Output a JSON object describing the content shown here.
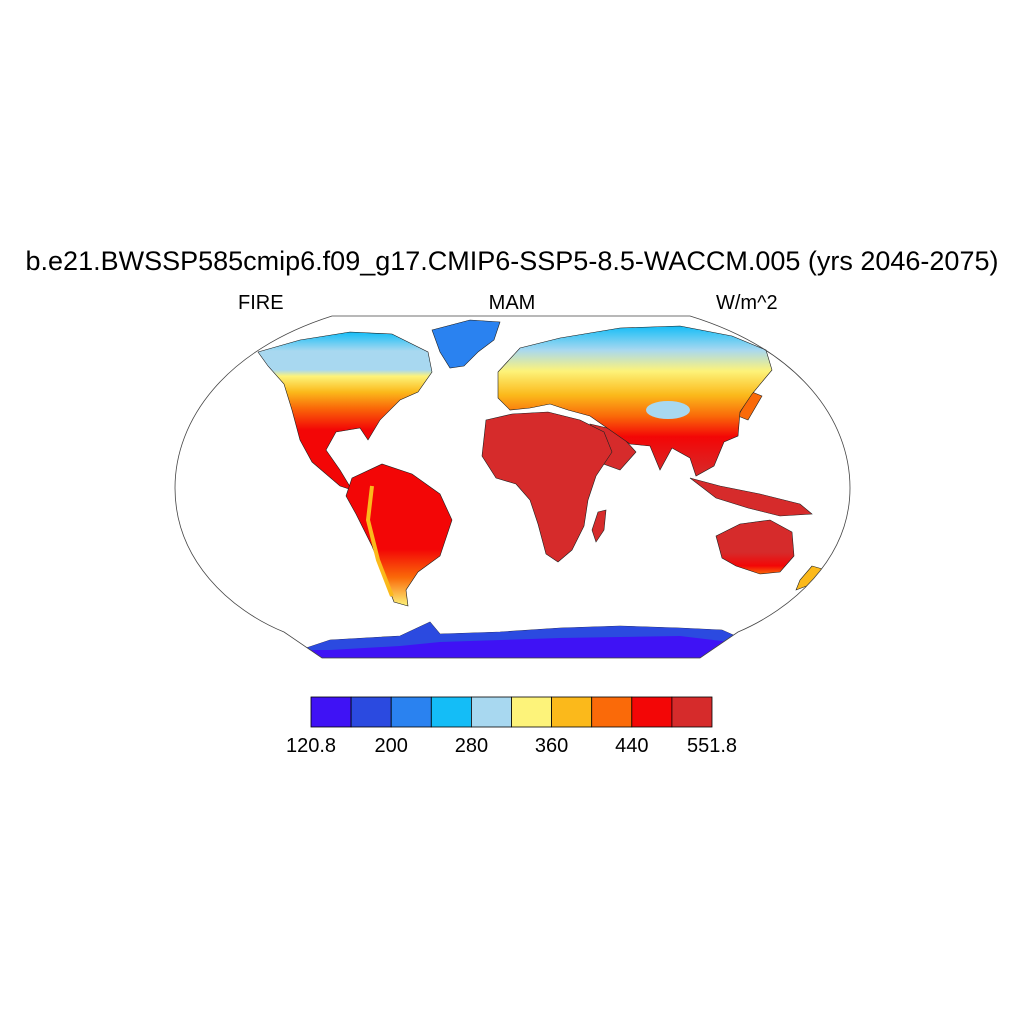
{
  "title": "b.e21.BWSSP585cmip6.f09_g17.CMIP6-SSP5-8.5-WACCM.005 (yrs 2046-2075)",
  "left_subtitle": "FIRE",
  "center_subtitle": "MAM",
  "right_subtitle": "W/m^2",
  "colorbar": {
    "colors": [
      "#3f12f5",
      "#2b4ae0",
      "#2a82f0",
      "#14bdf7",
      "#a8d8f0",
      "#fdf37a",
      "#fbb91b",
      "#fa6a09",
      "#f30606",
      "#d62b2b"
    ],
    "tick_labels": [
      "120.8",
      "200",
      "280",
      "360",
      "440",
      "551.8"
    ]
  },
  "map": {
    "projection": "Robinson",
    "ocean_color": "#ffffff",
    "regions": {
      "antarctica": "#3f12f5",
      "antarctica_coast": "#2b4ae0",
      "greenland": "#2a82f0",
      "arctic_fringe": "#14bdf7",
      "boreal": "#a8d8f0",
      "midlat_north": "#fdf37a",
      "subtropics_north": "#fbb91b",
      "warm_temperate": "#fa6a09",
      "tropics": "#f30606",
      "deserts": "#d62b2b"
    }
  }
}
